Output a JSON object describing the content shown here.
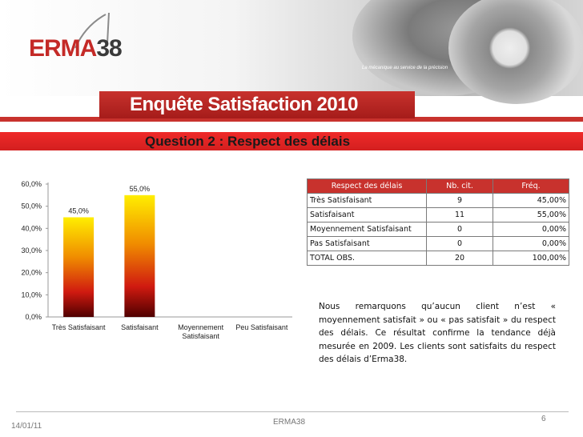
{
  "brand": {
    "logo_part1": "ERMA",
    "logo_part2": "38",
    "tagline": "La mécanique au service de la précision",
    "red": "#c8322d"
  },
  "banner": {
    "title": "Enquête Satisfaction 2010"
  },
  "slide": {
    "subtitle": "Question 2 : Respect des délais"
  },
  "chart_data": {
    "type": "bar",
    "categories": [
      "Très Satisfaisant",
      "Satisfaisant",
      "Moyennement Satisfaisant",
      "Peu Satisfaisant"
    ],
    "values": [
      45.0,
      55.0,
      0,
      0
    ],
    "data_labels": [
      "45,0%",
      "55,0%",
      "",
      ""
    ],
    "yticks": [
      "0,0%",
      "10,0%",
      "20,0%",
      "30,0%",
      "40,0%",
      "50,0%",
      "60,0%"
    ],
    "ylim": [
      0,
      60
    ],
    "grid": false,
    "legend": "none",
    "bar_gradient": [
      "#ffee00",
      "#f08c00",
      "#d01a10",
      "#500000"
    ]
  },
  "table": {
    "headers": [
      "Respect des délais",
      "Nb. cit.",
      "Fréq."
    ],
    "rows": [
      [
        "Très Satisfaisant",
        "9",
        "45,00%"
      ],
      [
        "Satisfaisant",
        "11",
        "55,00%"
      ],
      [
        "Moyennement Satisfaisant",
        "0",
        "0,00%"
      ],
      [
        "Pas Satisfaisant",
        "0",
        "0,00%"
      ],
      [
        "TOTAL OBS.",
        "20",
        "100,00%"
      ]
    ]
  },
  "conclusion": "Nous remarquons qu’aucun client n’est « moyennement satisfait » ou « pas satisfait » du respect des délais. Ce résultat confirme la tendance déjà mesurée en 2009. Les clients sont satisfaits du respect des délais d’Erma38.",
  "footer": {
    "date": "14/01/11",
    "name": "ERMA38",
    "page": "6"
  }
}
